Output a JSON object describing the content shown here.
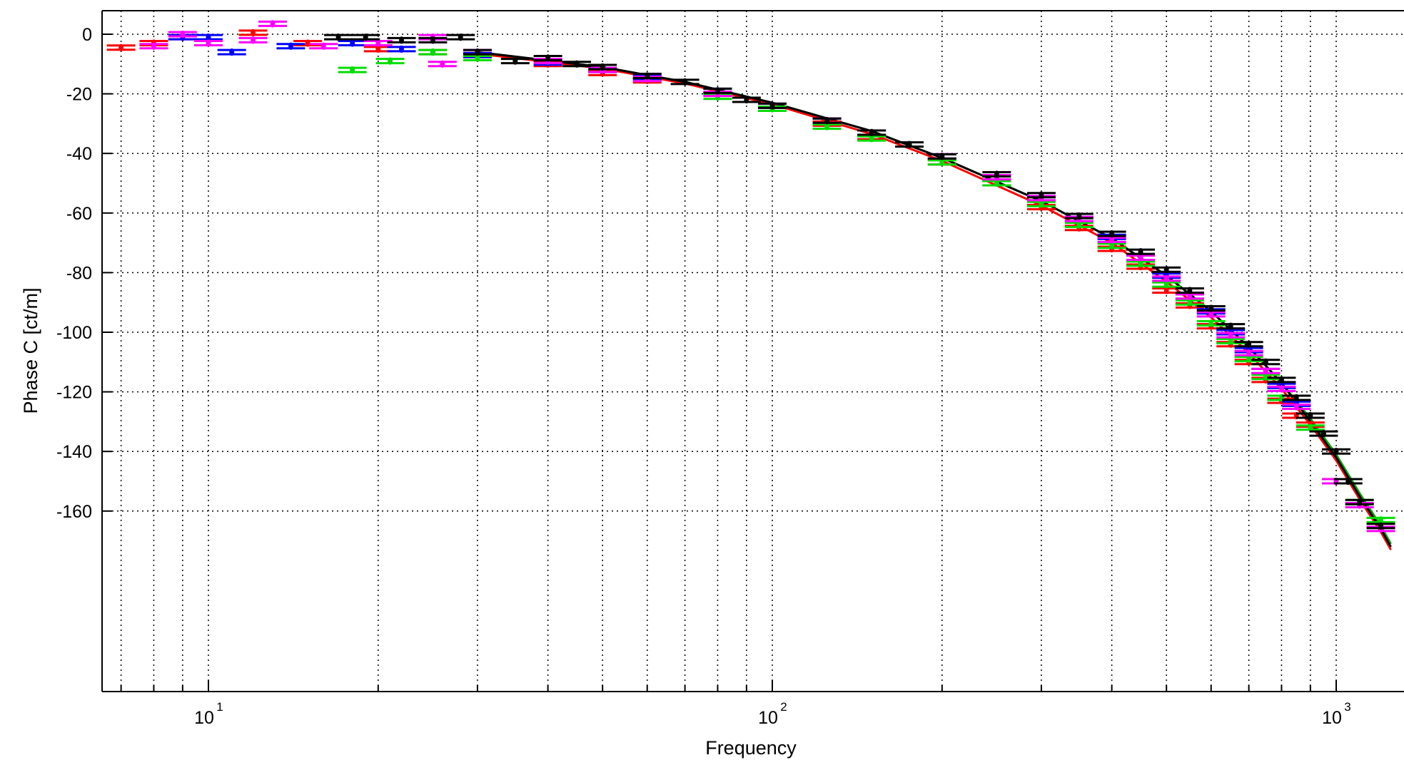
{
  "chart_data": {
    "type": "scatter",
    "title": "",
    "xlabel": "Frequency",
    "ylabel": "Phase C [ct/m]",
    "x_scale": "log",
    "xlim": [
      6.3,
      1300
    ],
    "ylim": [
      -175,
      6
    ],
    "grid": true,
    "x_major_ticks": [
      10,
      100,
      1000
    ],
    "x_tick_labels": [
      {
        "base": "10",
        "exp": "1"
      },
      {
        "base": "10",
        "exp": "2"
      },
      {
        "base": "10",
        "exp": "3"
      }
    ],
    "y_ticks": [
      0,
      -20,
      -40,
      -60,
      -80,
      -100,
      -120,
      -140,
      -160
    ],
    "y_tick_labels": [
      "0",
      "-20",
      "-40",
      "-60",
      "-80",
      "-100",
      "-120",
      "-140",
      "-160"
    ],
    "series": [
      {
        "color": "#ff0000",
        "points": [
          [
            7,
            -4.5
          ],
          [
            8,
            -3
          ],
          [
            9,
            -1
          ],
          [
            12,
            0.5
          ],
          [
            15,
            -3
          ],
          [
            20,
            -5
          ],
          [
            25,
            -6
          ],
          [
            30,
            -7
          ],
          [
            40,
            -10
          ],
          [
            50,
            -13
          ],
          [
            60,
            -15.5
          ],
          [
            80,
            -20
          ],
          [
            100,
            -25
          ],
          [
            125,
            -30
          ],
          [
            150,
            -34.5
          ],
          [
            200,
            -43
          ],
          [
            250,
            -50
          ],
          [
            300,
            -58
          ],
          [
            350,
            -65
          ],
          [
            400,
            -72
          ],
          [
            450,
            -78
          ],
          [
            500,
            -86
          ],
          [
            550,
            -91
          ],
          [
            600,
            -98
          ],
          [
            650,
            -104
          ],
          [
            700,
            -110
          ],
          [
            750,
            -116
          ],
          [
            800,
            -123
          ],
          [
            850,
            -128
          ],
          [
            900,
            -131
          ]
        ]
      },
      {
        "color": "#0000ff",
        "points": [
          [
            9,
            -1
          ],
          [
            10,
            -1
          ],
          [
            11,
            -6
          ],
          [
            14,
            -4
          ],
          [
            18,
            -3
          ],
          [
            22,
            -5
          ],
          [
            30,
            -7
          ],
          [
            40,
            -9.5
          ],
          [
            50,
            -12
          ],
          [
            60,
            -14.5
          ],
          [
            80,
            -19
          ],
          [
            100,
            -24
          ],
          [
            125,
            -29
          ],
          [
            150,
            -33
          ],
          [
            200,
            -41
          ],
          [
            250,
            -48
          ],
          [
            300,
            -55
          ],
          [
            350,
            -62
          ],
          [
            400,
            -68
          ],
          [
            450,
            -75
          ],
          [
            500,
            -81
          ],
          [
            550,
            -88
          ],
          [
            600,
            -93
          ],
          [
            650,
            -100
          ],
          [
            700,
            -106
          ],
          [
            750,
            -113
          ],
          [
            800,
            -118
          ],
          [
            850,
            -124
          ]
        ]
      },
      {
        "color": "#00dd00",
        "points": [
          [
            18,
            -12
          ],
          [
            21,
            -9
          ],
          [
            25,
            -6
          ],
          [
            30,
            -8
          ],
          [
            40,
            -9
          ],
          [
            50,
            -12
          ],
          [
            60,
            -15
          ],
          [
            80,
            -21
          ],
          [
            100,
            -25
          ],
          [
            125,
            -31
          ],
          [
            150,
            -35
          ],
          [
            200,
            -43
          ],
          [
            250,
            -50
          ],
          [
            300,
            -57
          ],
          [
            350,
            -64
          ],
          [
            400,
            -71
          ],
          [
            450,
            -77
          ],
          [
            500,
            -84
          ],
          [
            550,
            -90
          ],
          [
            600,
            -97
          ],
          [
            650,
            -103
          ],
          [
            700,
            -109
          ],
          [
            750,
            -115
          ],
          [
            800,
            -122
          ],
          [
            900,
            -132
          ],
          [
            1000,
            -150
          ],
          [
            1100,
            -157
          ],
          [
            1200,
            -163
          ]
        ]
      },
      {
        "color": "#ff00ff",
        "points": [
          [
            8,
            -4
          ],
          [
            9,
            0
          ],
          [
            10,
            -3
          ],
          [
            12,
            -2
          ],
          [
            13,
            3.5
          ],
          [
            16,
            -4
          ],
          [
            20,
            -3
          ],
          [
            25,
            -1
          ],
          [
            26,
            -10
          ],
          [
            30,
            -6
          ],
          [
            40,
            -9
          ],
          [
            50,
            -12
          ],
          [
            60,
            -15
          ],
          [
            80,
            -20
          ],
          [
            100,
            -24
          ],
          [
            125,
            -29
          ],
          [
            150,
            -33
          ],
          [
            200,
            -41
          ],
          [
            250,
            -48
          ],
          [
            300,
            -55
          ],
          [
            350,
            -62
          ],
          [
            400,
            -69
          ],
          [
            450,
            -75
          ],
          [
            500,
            -82
          ],
          [
            550,
            -88
          ],
          [
            600,
            -94
          ],
          [
            650,
            -101
          ],
          [
            700,
            -107
          ],
          [
            750,
            -113
          ],
          [
            800,
            -119
          ],
          [
            850,
            -125
          ],
          [
            1000,
            -150
          ],
          [
            1100,
            -158
          ],
          [
            1200,
            -166
          ]
        ]
      },
      {
        "color": "#000000",
        "points": [
          [
            17,
            -1
          ],
          [
            19,
            -1
          ],
          [
            22,
            -2
          ],
          [
            25,
            -2
          ],
          [
            28,
            -1
          ],
          [
            30,
            -6
          ],
          [
            35,
            -9
          ],
          [
            40,
            -8
          ],
          [
            45,
            -10
          ],
          [
            50,
            -11
          ],
          [
            60,
            -14
          ],
          [
            70,
            -16
          ],
          [
            80,
            -19
          ],
          [
            90,
            -22
          ],
          [
            100,
            -24
          ],
          [
            125,
            -29
          ],
          [
            150,
            -33
          ],
          [
            175,
            -37
          ],
          [
            200,
            -41
          ],
          [
            250,
            -47
          ],
          [
            300,
            -54
          ],
          [
            350,
            -61
          ],
          [
            400,
            -67
          ],
          [
            450,
            -73
          ],
          [
            500,
            -79
          ],
          [
            550,
            -86
          ],
          [
            600,
            -92
          ],
          [
            650,
            -98
          ],
          [
            700,
            -104
          ],
          [
            750,
            -110
          ],
          [
            800,
            -116
          ],
          [
            850,
            -122
          ],
          [
            900,
            -128
          ],
          [
            950,
            -134
          ],
          [
            1000,
            -140
          ],
          [
            1050,
            -150
          ],
          [
            1100,
            -157
          ],
          [
            1200,
            -165
          ]
        ]
      }
    ],
    "fit_curves": [
      {
        "color": "#ff0000",
        "points": [
          [
            30,
            -6.5
          ],
          [
            50,
            -11.5
          ],
          [
            70,
            -16.5
          ],
          [
            100,
            -23.5
          ],
          [
            150,
            -33.5
          ],
          [
            200,
            -42.5
          ],
          [
            300,
            -57.5
          ],
          [
            400,
            -70
          ],
          [
            500,
            -83
          ],
          [
            600,
            -95
          ],
          [
            700,
            -107
          ],
          [
            800,
            -119
          ],
          [
            900,
            -131
          ],
          [
            1000,
            -143
          ],
          [
            1100,
            -156
          ],
          [
            1200,
            -167
          ],
          [
            1250,
            -173
          ]
        ]
      },
      {
        "color": "#00aa00",
        "points": [
          [
            30,
            -6
          ],
          [
            50,
            -11
          ],
          [
            70,
            -16
          ],
          [
            100,
            -23
          ],
          [
            150,
            -32.5
          ],
          [
            200,
            -41.5
          ],
          [
            300,
            -56
          ],
          [
            400,
            -68.5
          ],
          [
            500,
            -81
          ],
          [
            600,
            -93
          ],
          [
            700,
            -105
          ],
          [
            800,
            -117
          ],
          [
            900,
            -129
          ],
          [
            1000,
            -141
          ],
          [
            1100,
            -154
          ],
          [
            1200,
            -165
          ],
          [
            1250,
            -171
          ]
        ]
      },
      {
        "color": "#000000",
        "points": [
          [
            30,
            -6
          ],
          [
            50,
            -11
          ],
          [
            70,
            -16
          ],
          [
            100,
            -23
          ],
          [
            150,
            -32.5
          ],
          [
            200,
            -41.5
          ],
          [
            300,
            -56
          ],
          [
            400,
            -68.5
          ],
          [
            500,
            -81
          ],
          [
            600,
            -93
          ],
          [
            700,
            -105
          ],
          [
            800,
            -117
          ],
          [
            900,
            -130
          ],
          [
            1000,
            -142
          ],
          [
            1100,
            -155
          ],
          [
            1200,
            -166
          ],
          [
            1250,
            -172
          ]
        ]
      }
    ]
  }
}
